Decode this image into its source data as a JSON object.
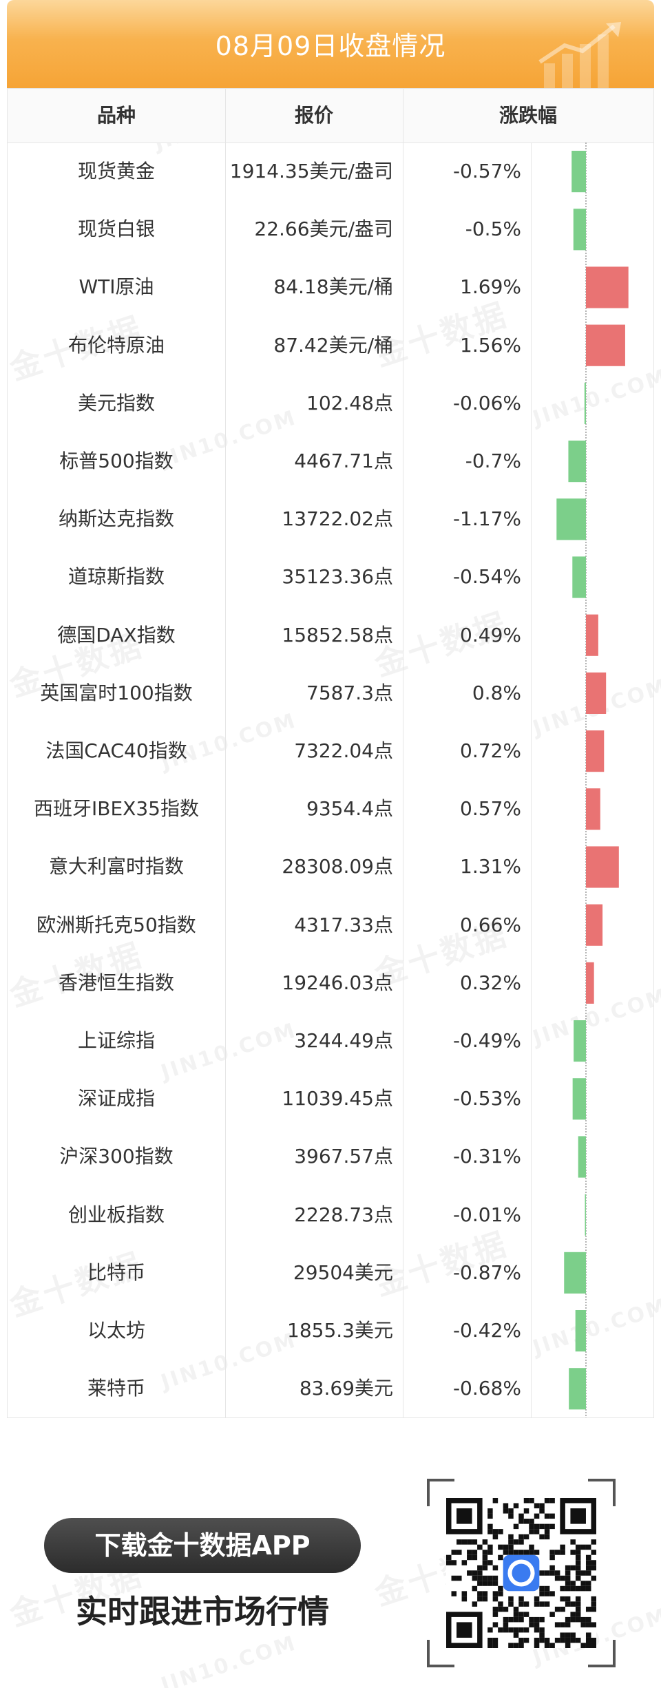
{
  "header": {
    "title": "08月09日收盘情况"
  },
  "table": {
    "columns": [
      "品种",
      "报价",
      "涨跌幅"
    ]
  },
  "chart_data": {
    "type": "table",
    "colors": {
      "up": "#e97373",
      "down": "#7ccf8a"
    },
    "rows": [
      {
        "name": "现货黄金",
        "price": "1914.35美元/盎司",
        "change": "-0.57%",
        "value": -0.57
      },
      {
        "name": "现货白银",
        "price": "22.66美元/盎司",
        "change": "-0.5%",
        "value": -0.5
      },
      {
        "name": "WTI原油",
        "price": "84.18美元/桶",
        "change": "1.69%",
        "value": 1.69
      },
      {
        "name": "布伦特原油",
        "price": "87.42美元/桶",
        "change": "1.56%",
        "value": 1.56
      },
      {
        "name": "美元指数",
        "price": "102.48点",
        "change": "-0.06%",
        "value": -0.06
      },
      {
        "name": "标普500指数",
        "price": "4467.71点",
        "change": "-0.7%",
        "value": -0.7
      },
      {
        "name": "纳斯达克指数",
        "price": "13722.02点",
        "change": "-1.17%",
        "value": -1.17
      },
      {
        "name": "道琼斯指数",
        "price": "35123.36点",
        "change": "-0.54%",
        "value": -0.54
      },
      {
        "name": "德国DAX指数",
        "price": "15852.58点",
        "change": "0.49%",
        "value": 0.49
      },
      {
        "name": "英国富时100指数",
        "price": "7587.3点",
        "change": "0.8%",
        "value": 0.8
      },
      {
        "name": "法国CAC40指数",
        "price": "7322.04点",
        "change": "0.72%",
        "value": 0.72
      },
      {
        "name": "西班牙IBEX35指数",
        "price": "9354.4点",
        "change": "0.57%",
        "value": 0.57
      },
      {
        "name": "意大利富时指数",
        "price": "28308.09点",
        "change": "1.31%",
        "value": 1.31
      },
      {
        "name": "欧洲斯托克50指数",
        "price": "4317.33点",
        "change": "0.66%",
        "value": 0.66
      },
      {
        "name": "香港恒生指数",
        "price": "19246.03点",
        "change": "0.32%",
        "value": 0.32
      },
      {
        "name": "上证综指",
        "price": "3244.49点",
        "change": "-0.49%",
        "value": -0.49
      },
      {
        "name": "深证成指",
        "price": "11039.45点",
        "change": "-0.53%",
        "value": -0.53
      },
      {
        "name": "沪深300指数",
        "price": "3967.57点",
        "change": "-0.31%",
        "value": -0.31
      },
      {
        "name": "创业板指数",
        "price": "2228.73点",
        "change": "-0.01%",
        "value": -0.01
      },
      {
        "name": "比特币",
        "price": "29504美元",
        "change": "-0.87%",
        "value": -0.87
      },
      {
        "name": "以太坊",
        "price": "1855.3美元",
        "change": "-0.42%",
        "value": -0.42
      },
      {
        "name": "莱特币",
        "price": "83.69美元",
        "change": "-0.68%",
        "value": -0.68
      }
    ]
  },
  "promo": {
    "button_label": "下载金十数据APP",
    "tagline": "实时跟进市场行情"
  },
  "watermark": {
    "cn": "金十数据",
    "en": "JIN10.COM"
  }
}
